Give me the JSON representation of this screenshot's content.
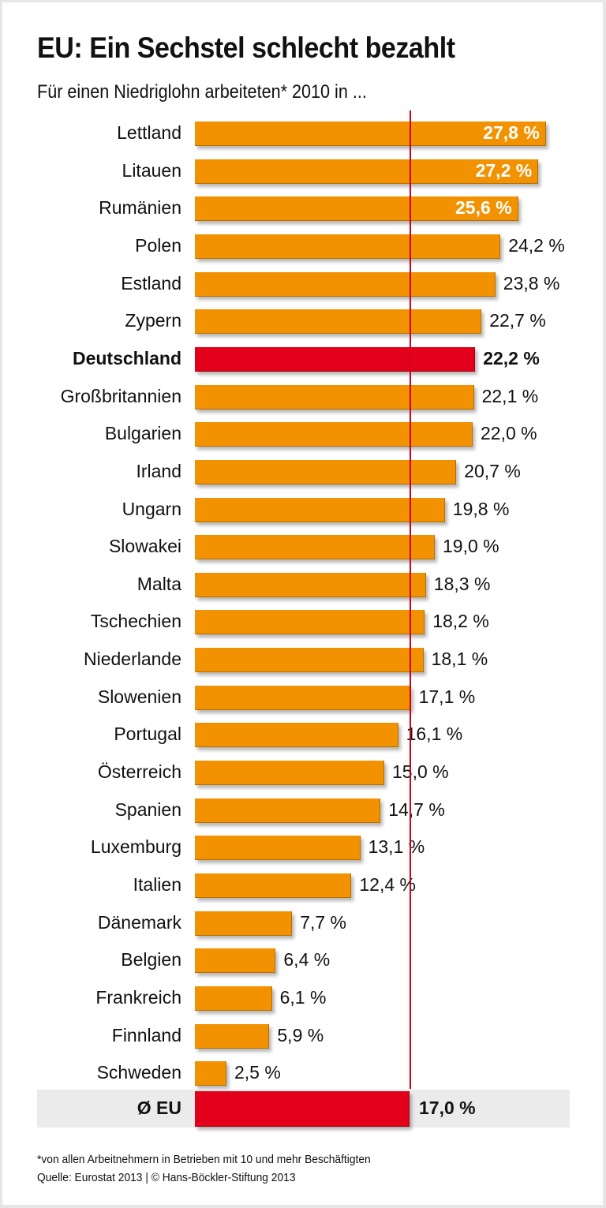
{
  "chart_data": {
    "type": "bar",
    "orientation": "horizontal",
    "title": "EU: Ein Sechstel schlecht bezahlt",
    "subtitle": "Für einen Niedriglohn arbeiteten* 2010 in ...",
    "xlabel": "",
    "ylabel": "",
    "unit": "%",
    "xlim": [
      0,
      28
    ],
    "grid": false,
    "categories": [
      "Lettland",
      "Litauen",
      "Rumänien",
      "Polen",
      "Estland",
      "Zypern",
      "Deutschland",
      "Großbritannien",
      "Bulgarien",
      "Irland",
      "Ungarn",
      "Slowakei",
      "Malta",
      "Tschechien",
      "Niederlande",
      "Slowenien",
      "Portugal",
      "Österreich",
      "Spanien",
      "Luxemburg",
      "Italien",
      "Dänemark",
      "Belgien",
      "Frankreich",
      "Finnland",
      "Schweden"
    ],
    "values": [
      27.8,
      27.2,
      25.6,
      24.2,
      23.8,
      22.7,
      22.2,
      22.1,
      22.0,
      20.7,
      19.8,
      19.0,
      18.3,
      18.2,
      18.1,
      17.1,
      16.1,
      15.0,
      14.7,
      13.1,
      12.4,
      7.7,
      6.4,
      6.1,
      5.9,
      2.5
    ],
    "value_labels": [
      "27,8 %",
      "27,2 %",
      "25,6 %",
      "24,2 %",
      "23,8 %",
      "22,7 %",
      "22,2 %",
      "22,1 %",
      "22,0 %",
      "20,7 %",
      "19,8 %",
      "19,0 %",
      "18,3 %",
      "18,2 %",
      "18,1 %",
      "17,1 %",
      "16,1 %",
      "15,0 %",
      "14,7 %",
      "13,1 %",
      "12,4 %",
      "7,7 %",
      "6,4 %",
      "6,1 %",
      "5,9 %",
      "2,5 %"
    ],
    "highlight": "Deutschland",
    "reference": {
      "label": "Ø EU",
      "value": 17.0,
      "value_label": "17,0 %"
    },
    "colors": {
      "bar": "#f39200",
      "highlight": "#e2001a",
      "reference_line": "#d2001a",
      "reference_band": "#ebebeb"
    }
  },
  "footnote": "*von allen Arbeitnehmern in Betrieben mit 10 und mehr Beschäftigten",
  "source": "Quelle: Eurostat 2013 | © Hans-Böckler-Stiftung 2013"
}
